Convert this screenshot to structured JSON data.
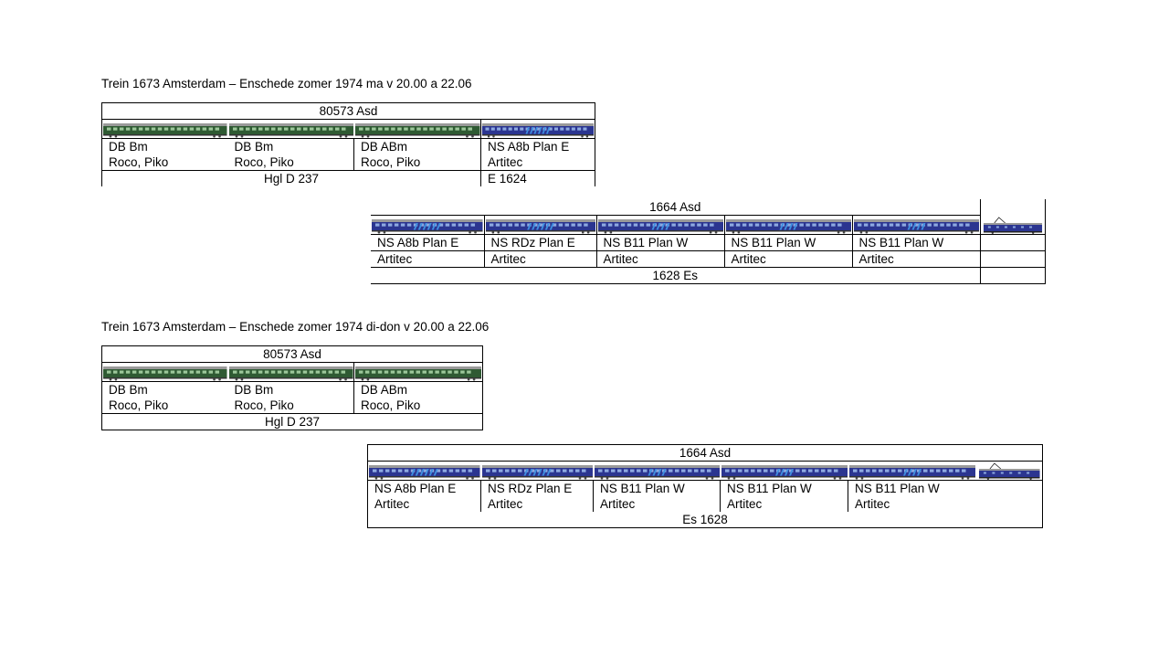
{
  "section1": {
    "title": "Trein 1673 Amsterdam – Enschede zomer 1974 ma v 20.00 a 22.06",
    "part1": {
      "header": "80573 Asd",
      "cars": [
        {
          "type": "DB Bm",
          "maker": "Roco, Piko"
        },
        {
          "type": "DB Bm",
          "maker": "Roco, Piko"
        },
        {
          "type": "DB ABm",
          "maker": "Roco, Piko"
        },
        {
          "type": "NS A8b Plan E",
          "maker": "Artitec"
        }
      ],
      "footer_left": "Hgl D 237",
      "footer_right": "E 1624"
    },
    "part2": {
      "header": "1664 Asd",
      "cars": [
        {
          "type": "NS A8b Plan E",
          "maker": "Artitec"
        },
        {
          "type": "NS RDz Plan E",
          "maker": "Artitec"
        },
        {
          "type": "NS B11 Plan W",
          "maker": "Artitec"
        },
        {
          "type": "NS B11 Plan W",
          "maker": "Artitec"
        },
        {
          "type": "NS B11 Plan W",
          "maker": "Artitec"
        }
      ],
      "footer": "1628 Es"
    }
  },
  "section2": {
    "title": "Trein 1673 Amsterdam – Enschede zomer 1974 di-don v 20.00 a 22.06",
    "part1": {
      "header": "80573 Asd",
      "cars": [
        {
          "type": "DB Bm",
          "maker": "Roco, Piko"
        },
        {
          "type": "DB Bm",
          "maker": "Roco, Piko"
        },
        {
          "type": "DB ABm",
          "maker": "Roco, Piko"
        }
      ],
      "footer": "Hgl D 237"
    },
    "part2": {
      "header": "1664 Asd",
      "cars": [
        {
          "type": "NS A8b Plan E",
          "maker": "Artitec"
        },
        {
          "type": "NS RDz Plan E",
          "maker": "Artitec"
        },
        {
          "type": "NS B11 Plan W",
          "maker": "Artitec"
        },
        {
          "type": "NS B11 Plan W",
          "maker": "Artitec"
        },
        {
          "type": "NS B11 Plan W",
          "maker": "Artitec"
        }
      ],
      "footer": "Es 1628"
    }
  },
  "colors": {
    "db_green": "#2f5a33",
    "db_window": "#9cc79a",
    "ns_blue": "#2b3590",
    "ns_window": "#8da9e0",
    "ns_stripe": "#3f8fe0",
    "roof_grey": "#9a9a9a"
  },
  "icons": {
    "db_car": "db-green-coach-icon",
    "ns_car": "ns-blue-coach-icon",
    "ns_loco": "ns-electric-locomotive-icon"
  }
}
